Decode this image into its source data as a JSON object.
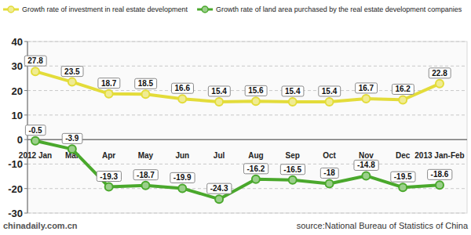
{
  "chart_data": {
    "type": "line",
    "categories": [
      "2012 Jan",
      "Mar",
      "Apr",
      "May",
      "Jun",
      "Jul",
      "Aug",
      "Sep",
      "Oct",
      "Nov",
      "Dec",
      "2013 Jan-Feb"
    ],
    "series": [
      {
        "name": "Growth rate of investment in real estate development",
        "color": "#e3dc3a",
        "marker": "circle",
        "values": [
          27.8,
          23.5,
          18.7,
          18.5,
          16.6,
          15.4,
          15.6,
          15.4,
          15.4,
          16.7,
          16.2,
          22.8
        ]
      },
      {
        "name": "Growth rate of land area purchased by the real estate development companies",
        "color": "#4aa82c",
        "marker": "circle",
        "values": [
          -0.5,
          -3.9,
          -19.3,
          -18.7,
          -19.9,
          -24.3,
          -16.2,
          -16.5,
          -18,
          -14.8,
          -19.5,
          -18.6
        ]
      }
    ],
    "ylim": [
      -30,
      40
    ],
    "yticks": [
      -30,
      -20,
      -10,
      0,
      10,
      20,
      30,
      40
    ],
    "grid": true,
    "legend": "top",
    "data_labels": true,
    "annotations": [
      "chinadaily.com.cn",
      "source:National Bureau of Statistics of China"
    ]
  }
}
